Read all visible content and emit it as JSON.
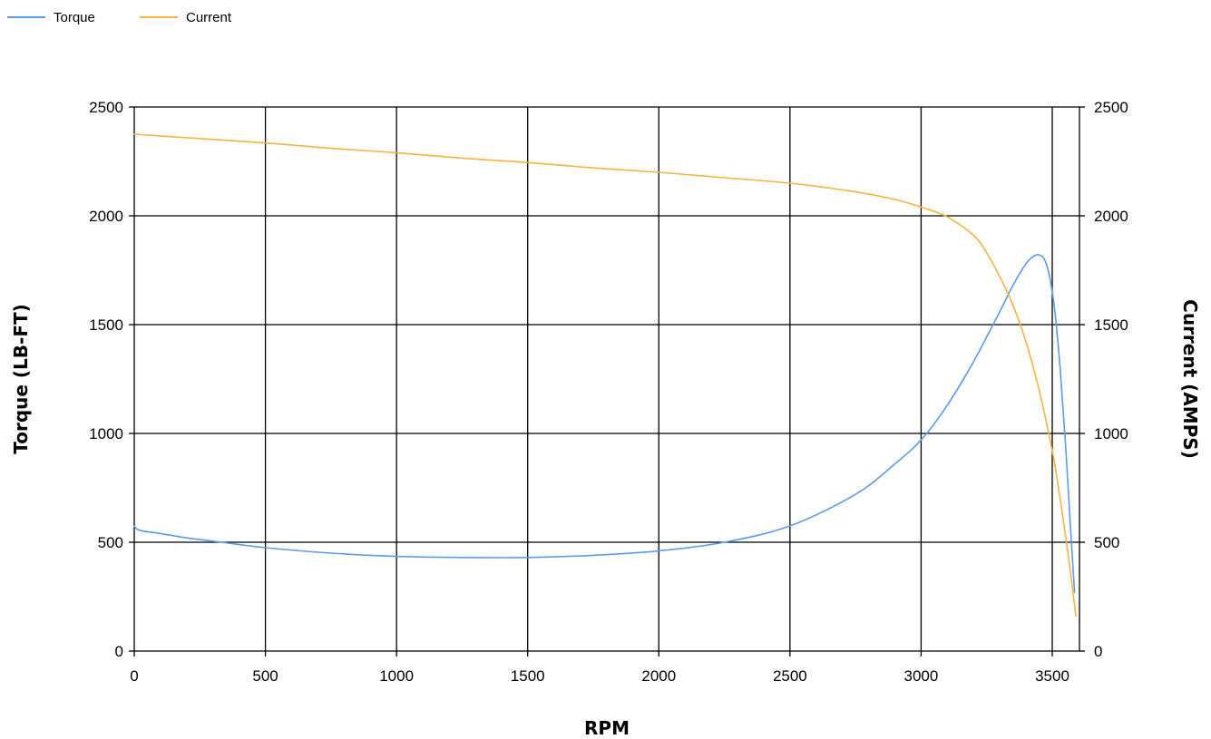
{
  "chart_data": {
    "type": "line",
    "xlabel": "RPM",
    "ylabel_left": "Torque (LB-FT)",
    "ylabel_right": "Current (AMPS)",
    "xlim": [
      0,
      3600
    ],
    "ylim": [
      0,
      2500
    ],
    "y2lim": [
      0,
      2500
    ],
    "grid": true,
    "legend_position": "top-left",
    "x_ticks": [
      "0",
      "500",
      "1000",
      "1500",
      "2000",
      "2500",
      "3000",
      "3500"
    ],
    "y_ticks": [
      "0",
      "500",
      "1000",
      "1500",
      "2000",
      "2500"
    ],
    "y2_ticks": [
      "0",
      "500",
      "1000",
      "1500",
      "2000",
      "2500"
    ],
    "series": [
      {
        "name": "Torque",
        "axis": "left",
        "color": "#5B9BEB",
        "x": [
          0,
          20,
          100,
          200,
          300,
          500,
          750,
          1000,
          1250,
          1500,
          1750,
          2000,
          2250,
          2500,
          2750,
          2900,
          3000,
          3100,
          3200,
          3300,
          3350,
          3400,
          3430,
          3450,
          3470,
          3490,
          3510,
          3530,
          3550,
          3570,
          3585
        ],
        "y": [
          575,
          555,
          540,
          520,
          505,
          475,
          450,
          435,
          430,
          430,
          440,
          460,
          500,
          575,
          720,
          860,
          970,
          1130,
          1330,
          1560,
          1680,
          1780,
          1815,
          1820,
          1800,
          1720,
          1560,
          1300,
          960,
          560,
          270
        ]
      },
      {
        "name": "Current",
        "axis": "right",
        "color": "#F5B342",
        "x": [
          0,
          250,
          500,
          750,
          1000,
          1250,
          1500,
          1750,
          2000,
          2250,
          2500,
          2750,
          2900,
          3000,
          3100,
          3200,
          3250,
          3300,
          3350,
          3400,
          3450,
          3500,
          3520,
          3540,
          3560,
          3580,
          3590
        ],
        "y": [
          2375,
          2355,
          2335,
          2310,
          2290,
          2265,
          2245,
          2220,
          2200,
          2175,
          2150,
          2110,
          2075,
          2040,
          1995,
          1910,
          1830,
          1720,
          1590,
          1420,
          1200,
          920,
          780,
          620,
          450,
          260,
          160
        ]
      }
    ]
  }
}
